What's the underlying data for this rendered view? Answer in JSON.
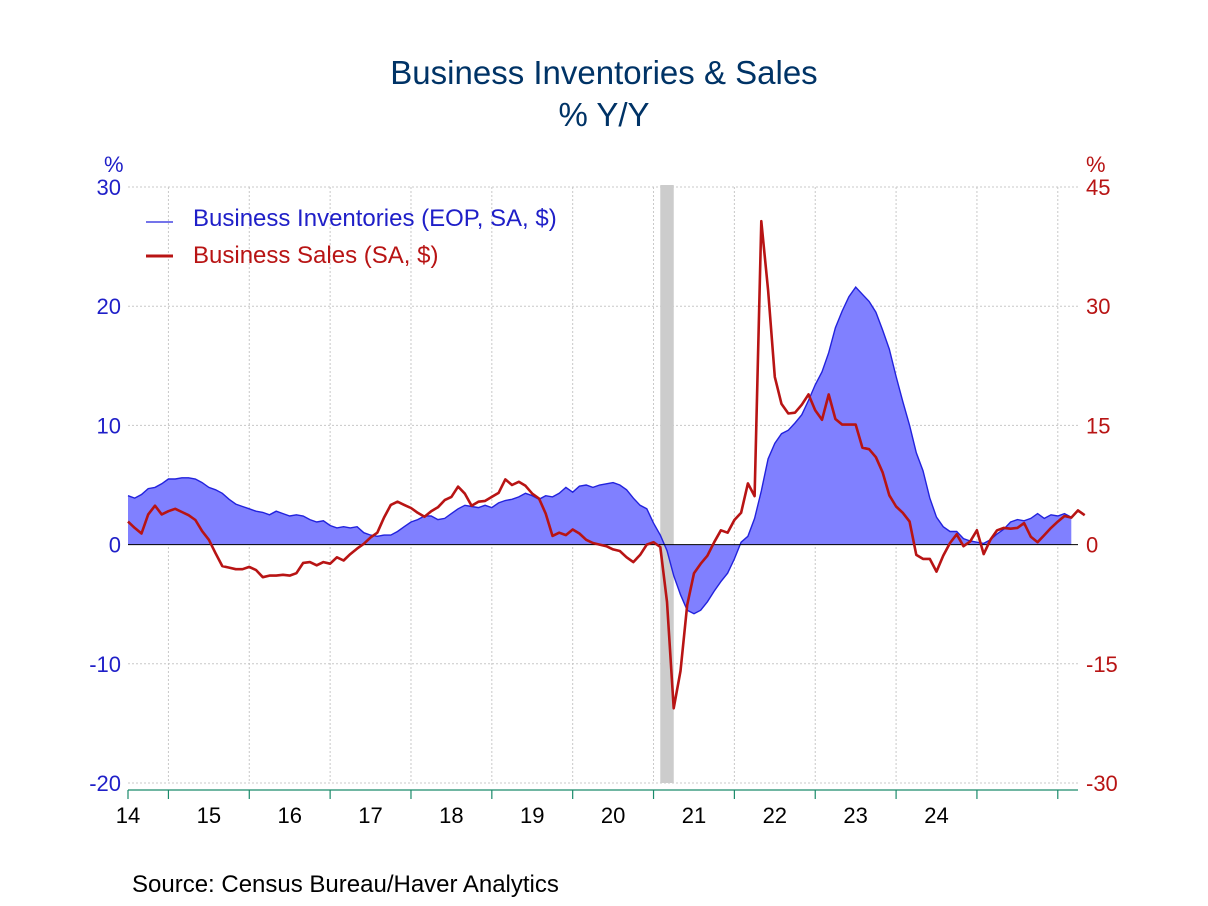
{
  "title": "Business Inventories & Sales",
  "subtitle": "% Y/Y",
  "source": "Source:  Census Bureau/Haver Analytics",
  "colors": {
    "inventories_line": "#2222dd",
    "inventories_fill": "#8080ff",
    "sales": "#b81414",
    "recession": "#cccccc",
    "left_axis": "#1f1fc8",
    "right_axis": "#b81414",
    "x_axis": "#1a8a6a"
  },
  "chart_data": {
    "type": "line",
    "left_axis": {
      "unit_label": "%",
      "ylim": [
        -20,
        30
      ],
      "ticks": [
        "30",
        "20",
        "10",
        "0",
        "-10",
        "-20"
      ]
    },
    "right_axis": {
      "unit_label": "%",
      "ylim": [
        -30,
        45
      ],
      "ticks": [
        "45",
        "30",
        "15",
        "0",
        "-15",
        "-30"
      ]
    },
    "x_tick_labels": [
      "14",
      "15",
      "16",
      "17",
      "18",
      "19",
      "20",
      "21",
      "22",
      "23",
      "24"
    ],
    "x_range": [
      "2013-07",
      "2025-04"
    ],
    "shaded_period": [
      "2020-02",
      "2020-04"
    ],
    "grid": true,
    "legend_position": "top-left",
    "series": [
      {
        "name": "Business Inventories (EOP, SA, $)",
        "axis": "left",
        "style": "filled-area",
        "points": [
          [
            "2013-07",
            4.1
          ],
          [
            "2013-08",
            3.9
          ],
          [
            "2013-09",
            4.2
          ],
          [
            "2013-10",
            4.7
          ],
          [
            "2013-11",
            4.8
          ],
          [
            "2013-12",
            5.1
          ],
          [
            "2014-01",
            5.5
          ],
          [
            "2014-02",
            5.5
          ],
          [
            "2014-03",
            5.6
          ],
          [
            "2014-04",
            5.6
          ],
          [
            "2014-05",
            5.5
          ],
          [
            "2014-06",
            5.2
          ],
          [
            "2014-07",
            4.8
          ],
          [
            "2014-08",
            4.6
          ],
          [
            "2014-09",
            4.3
          ],
          [
            "2014-10",
            3.8
          ],
          [
            "2014-11",
            3.4
          ],
          [
            "2014-12",
            3.2
          ],
          [
            "2015-01",
            3.0
          ],
          [
            "2015-02",
            2.8
          ],
          [
            "2015-03",
            2.7
          ],
          [
            "2015-04",
            2.5
          ],
          [
            "2015-05",
            2.8
          ],
          [
            "2015-06",
            2.6
          ],
          [
            "2015-07",
            2.4
          ],
          [
            "2015-08",
            2.5
          ],
          [
            "2015-09",
            2.4
          ],
          [
            "2015-10",
            2.1
          ],
          [
            "2015-11",
            1.9
          ],
          [
            "2015-12",
            2.0
          ],
          [
            "2016-01",
            1.6
          ],
          [
            "2016-02",
            1.4
          ],
          [
            "2016-03",
            1.5
          ],
          [
            "2016-04",
            1.4
          ],
          [
            "2016-05",
            1.5
          ],
          [
            "2016-06",
            1.0
          ],
          [
            "2016-07",
            0.8
          ],
          [
            "2016-08",
            0.7
          ],
          [
            "2016-09",
            0.8
          ],
          [
            "2016-10",
            0.8
          ],
          [
            "2016-11",
            1.1
          ],
          [
            "2016-12",
            1.5
          ],
          [
            "2017-01",
            1.9
          ],
          [
            "2017-02",
            2.1
          ],
          [
            "2017-03",
            2.4
          ],
          [
            "2017-04",
            2.4
          ],
          [
            "2017-05",
            2.1
          ],
          [
            "2017-06",
            2.2
          ],
          [
            "2017-07",
            2.6
          ],
          [
            "2017-08",
            3.0
          ],
          [
            "2017-09",
            3.3
          ],
          [
            "2017-10",
            3.2
          ],
          [
            "2017-11",
            3.1
          ],
          [
            "2017-12",
            3.3
          ],
          [
            "2018-01",
            3.1
          ],
          [
            "2018-02",
            3.5
          ],
          [
            "2018-03",
            3.7
          ],
          [
            "2018-04",
            3.8
          ],
          [
            "2018-05",
            4.0
          ],
          [
            "2018-06",
            4.3
          ],
          [
            "2018-07",
            4.1
          ],
          [
            "2018-08",
            3.8
          ],
          [
            "2018-09",
            4.1
          ],
          [
            "2018-10",
            4.0
          ],
          [
            "2018-11",
            4.3
          ],
          [
            "2018-12",
            4.8
          ],
          [
            "2019-01",
            4.4
          ],
          [
            "2019-02",
            4.9
          ],
          [
            "2019-03",
            5.0
          ],
          [
            "2019-04",
            4.8
          ],
          [
            "2019-05",
            5.0
          ],
          [
            "2019-06",
            5.1
          ],
          [
            "2019-07",
            5.2
          ],
          [
            "2019-08",
            5.0
          ],
          [
            "2019-09",
            4.6
          ],
          [
            "2019-10",
            3.9
          ],
          [
            "2019-11",
            3.3
          ],
          [
            "2019-12",
            3.0
          ],
          [
            "2020-01",
            1.8
          ],
          [
            "2020-02",
            0.8
          ],
          [
            "2020-03",
            -0.5
          ],
          [
            "2020-04",
            -2.6
          ],
          [
            "2020-05",
            -4.2
          ],
          [
            "2020-06",
            -5.5
          ],
          [
            "2020-07",
            -5.8
          ],
          [
            "2020-08",
            -5.5
          ],
          [
            "2020-09",
            -4.8
          ],
          [
            "2020-10",
            -3.9
          ],
          [
            "2020-11",
            -3.1
          ],
          [
            "2020-12",
            -2.4
          ],
          [
            "2021-01",
            -1.2
          ],
          [
            "2021-02",
            0.2
          ],
          [
            "2021-03",
            0.7
          ],
          [
            "2021-04",
            2.2
          ],
          [
            "2021-05",
            4.5
          ],
          [
            "2021-06",
            7.2
          ],
          [
            "2021-07",
            8.5
          ],
          [
            "2021-08",
            9.3
          ],
          [
            "2021-09",
            9.6
          ],
          [
            "2021-10",
            10.2
          ],
          [
            "2021-11",
            10.9
          ],
          [
            "2021-12",
            12.1
          ],
          [
            "2022-01",
            13.4
          ],
          [
            "2022-02",
            14.5
          ],
          [
            "2022-03",
            16.1
          ],
          [
            "2022-04",
            18.2
          ],
          [
            "2022-05",
            19.6
          ],
          [
            "2022-06",
            20.8
          ],
          [
            "2022-07",
            21.6
          ],
          [
            "2022-08",
            21.0
          ],
          [
            "2022-09",
            20.4
          ],
          [
            "2022-10",
            19.5
          ],
          [
            "2022-11",
            18.0
          ],
          [
            "2022-12",
            16.4
          ],
          [
            "2023-01",
            14.1
          ],
          [
            "2023-02",
            12.0
          ],
          [
            "2023-03",
            10.0
          ],
          [
            "2023-04",
            7.7
          ],
          [
            "2023-05",
            6.2
          ],
          [
            "2023-06",
            3.9
          ],
          [
            "2023-07",
            2.3
          ],
          [
            "2023-08",
            1.5
          ],
          [
            "2023-09",
            1.1
          ],
          [
            "2023-10",
            1.1
          ],
          [
            "2023-11",
            0.5
          ],
          [
            "2023-12",
            0.3
          ],
          [
            "2024-01",
            0.2
          ],
          [
            "2024-02",
            0.1
          ],
          [
            "2024-03",
            0.4
          ],
          [
            "2024-04",
            0.9
          ],
          [
            "2024-05",
            1.3
          ],
          [
            "2024-06",
            1.9
          ],
          [
            "2024-07",
            2.1
          ],
          [
            "2024-08",
            2.0
          ],
          [
            "2024-09",
            2.2
          ],
          [
            "2024-10",
            2.6
          ],
          [
            "2024-11",
            2.2
          ],
          [
            "2024-12",
            2.5
          ],
          [
            "2025-01",
            2.4
          ],
          [
            "2025-02",
            2.6
          ],
          [
            "2025-03",
            2.3
          ]
        ]
      },
      {
        "name": "Business Sales (SA, $)",
        "axis": "right",
        "style": "line",
        "points": [
          [
            "2013-07",
            2.9
          ],
          [
            "2013-08",
            2.1
          ],
          [
            "2013-09",
            1.4
          ],
          [
            "2013-10",
            3.8
          ],
          [
            "2013-11",
            4.9
          ],
          [
            "2013-12",
            3.8
          ],
          [
            "2014-01",
            4.2
          ],
          [
            "2014-02",
            4.5
          ],
          [
            "2014-03",
            4.1
          ],
          [
            "2014-04",
            3.7
          ],
          [
            "2014-05",
            3.1
          ],
          [
            "2014-06",
            1.7
          ],
          [
            "2014-07",
            0.6
          ],
          [
            "2014-08",
            -1.1
          ],
          [
            "2014-09",
            -2.7
          ],
          [
            "2014-10",
            -2.9
          ],
          [
            "2014-11",
            -3.1
          ],
          [
            "2014-12",
            -3.1
          ],
          [
            "2015-01",
            -2.8
          ],
          [
            "2015-02",
            -3.2
          ],
          [
            "2015-03",
            -4.1
          ],
          [
            "2015-04",
            -3.9
          ],
          [
            "2015-05",
            -3.9
          ],
          [
            "2015-06",
            -3.8
          ],
          [
            "2015-07",
            -3.9
          ],
          [
            "2015-08",
            -3.6
          ],
          [
            "2015-09",
            -2.3
          ],
          [
            "2015-10",
            -2.2
          ],
          [
            "2015-11",
            -2.6
          ],
          [
            "2015-12",
            -2.2
          ],
          [
            "2016-01",
            -2.4
          ],
          [
            "2016-02",
            -1.6
          ],
          [
            "2016-03",
            -2.0
          ],
          [
            "2016-04",
            -1.2
          ],
          [
            "2016-05",
            -0.5
          ],
          [
            "2016-06",
            0.1
          ],
          [
            "2016-07",
            0.9
          ],
          [
            "2016-08",
            1.5
          ],
          [
            "2016-09",
            3.4
          ],
          [
            "2016-10",
            5.0
          ],
          [
            "2016-11",
            5.4
          ],
          [
            "2016-12",
            5.0
          ],
          [
            "2017-01",
            4.6
          ],
          [
            "2017-02",
            4.0
          ],
          [
            "2017-03",
            3.5
          ],
          [
            "2017-04",
            4.2
          ],
          [
            "2017-05",
            4.7
          ],
          [
            "2017-06",
            5.6
          ],
          [
            "2017-07",
            6.0
          ],
          [
            "2017-08",
            7.3
          ],
          [
            "2017-09",
            6.4
          ],
          [
            "2017-10",
            4.9
          ],
          [
            "2017-11",
            5.4
          ],
          [
            "2017-12",
            5.5
          ],
          [
            "2018-01",
            6.0
          ],
          [
            "2018-02",
            6.5
          ],
          [
            "2018-03",
            8.2
          ],
          [
            "2018-04",
            7.5
          ],
          [
            "2018-05",
            7.9
          ],
          [
            "2018-06",
            7.4
          ],
          [
            "2018-07",
            6.4
          ],
          [
            "2018-08",
            5.8
          ],
          [
            "2018-09",
            3.9
          ],
          [
            "2018-10",
            1.1
          ],
          [
            "2018-11",
            1.5
          ],
          [
            "2018-12",
            1.2
          ],
          [
            "2019-01",
            1.9
          ],
          [
            "2019-02",
            1.4
          ],
          [
            "2019-03",
            0.6
          ],
          [
            "2019-04",
            0.2
          ],
          [
            "2019-05",
            0.0
          ],
          [
            "2019-06",
            -0.2
          ],
          [
            "2019-07",
            -0.6
          ],
          [
            "2019-08",
            -0.8
          ],
          [
            "2019-09",
            -1.6
          ],
          [
            "2019-10",
            -2.2
          ],
          [
            "2019-11",
            -1.3
          ],
          [
            "2019-12",
            0.0
          ],
          [
            "2020-01",
            0.3
          ],
          [
            "2020-02",
            -0.3
          ],
          [
            "2020-03",
            -7.2
          ],
          [
            "2020-04",
            -20.6
          ],
          [
            "2020-05",
            -15.9
          ],
          [
            "2020-06",
            -7.6
          ],
          [
            "2020-07",
            -3.6
          ],
          [
            "2020-08",
            -2.4
          ],
          [
            "2020-09",
            -1.4
          ],
          [
            "2020-10",
            0.3
          ],
          [
            "2020-11",
            1.8
          ],
          [
            "2020-12",
            1.5
          ],
          [
            "2021-01",
            3.1
          ],
          [
            "2021-02",
            4.0
          ],
          [
            "2021-03",
            7.7
          ],
          [
            "2021-04",
            6.1
          ],
          [
            "2021-05",
            40.7
          ],
          [
            "2021-06",
            32.0
          ],
          [
            "2021-07",
            21.1
          ],
          [
            "2021-08",
            17.7
          ],
          [
            "2021-09",
            16.5
          ],
          [
            "2021-10",
            16.6
          ],
          [
            "2021-11",
            17.6
          ],
          [
            "2021-12",
            18.9
          ],
          [
            "2022-01",
            16.9
          ],
          [
            "2022-02",
            15.7
          ],
          [
            "2022-03",
            18.9
          ],
          [
            "2022-04",
            15.8
          ],
          [
            "2022-05",
            15.1
          ],
          [
            "2022-06",
            15.1
          ],
          [
            "2022-07",
            15.1
          ],
          [
            "2022-08",
            12.2
          ],
          [
            "2022-09",
            12.0
          ],
          [
            "2022-10",
            11.0
          ],
          [
            "2022-11",
            9.1
          ],
          [
            "2022-12",
            6.2
          ],
          [
            "2023-01",
            4.8
          ],
          [
            "2023-02",
            4.0
          ],
          [
            "2023-03",
            2.9
          ],
          [
            "2023-04",
            -1.3
          ],
          [
            "2023-05",
            -1.8
          ],
          [
            "2023-06",
            -1.8
          ],
          [
            "2023-07",
            -3.4
          ],
          [
            "2023-08",
            -1.4
          ],
          [
            "2023-09",
            0.2
          ],
          [
            "2023-10",
            1.3
          ],
          [
            "2023-11",
            -0.2
          ],
          [
            "2023-12",
            0.4
          ],
          [
            "2024-01",
            1.8
          ],
          [
            "2024-02",
            -1.2
          ],
          [
            "2024-03",
            0.6
          ],
          [
            "2024-04",
            1.8
          ],
          [
            "2024-05",
            2.1
          ],
          [
            "2024-06",
            2.0
          ],
          [
            "2024-07",
            2.1
          ],
          [
            "2024-08",
            2.7
          ],
          [
            "2024-09",
            1.0
          ],
          [
            "2024-10",
            0.3
          ],
          [
            "2024-11",
            1.2
          ],
          [
            "2024-12",
            2.1
          ],
          [
            "2025-01",
            2.9
          ],
          [
            "2025-02",
            3.6
          ],
          [
            "2025-03",
            3.4
          ],
          [
            "2025-04",
            4.3
          ],
          [
            "2025-05",
            3.7
          ]
        ]
      }
    ]
  }
}
